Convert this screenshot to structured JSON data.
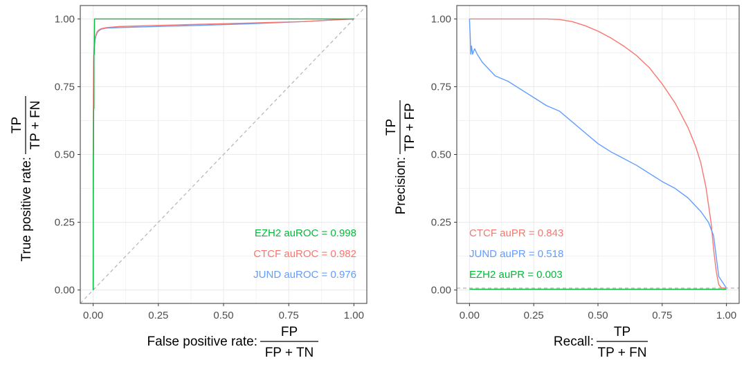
{
  "colors": {
    "CTCF": "#F8766D",
    "JUND": "#619CFF",
    "EZH2": "#00BA38",
    "grid": "#ebebeb",
    "diagonal": "#b3b3b3"
  },
  "chart_data": [
    {
      "type": "line",
      "panel": "left",
      "title": "",
      "xlabel": {
        "prefix": "False positive rate:",
        "numerator": "FP",
        "denominator": "FP + TN"
      },
      "ylabel": {
        "prefix": "True positive rate:",
        "numerator": "TP",
        "denominator": "TP + FN"
      },
      "xlim": [
        0,
        1
      ],
      "ylim": [
        0,
        1
      ],
      "x_ticks": [
        "0.00",
        "0.25",
        "0.50",
        "0.75",
        "1.00"
      ],
      "y_ticks": [
        "0.00",
        "0.25",
        "0.50",
        "0.75",
        "1.00"
      ],
      "grid": true,
      "reference_line": "diagonal",
      "legend_position": "bottom-right",
      "labels": [
        {
          "series": "EZH2",
          "text": "EZH2 auROC = 0.998"
        },
        {
          "series": "CTCF",
          "text": "CTCF auROC = 0.982"
        },
        {
          "series": "JUND",
          "text": "JUND auROC = 0.976"
        }
      ],
      "series": [
        {
          "name": "JUND",
          "x": [
            0,
            0.001,
            0.002,
            0.003,
            0.005,
            0.007,
            0.01,
            0.015,
            0.02,
            0.03,
            0.05,
            0.1,
            0.2,
            0.4,
            0.6,
            0.8,
            0.9,
            1.0
          ],
          "y": [
            0,
            0.6,
            0.8,
            0.87,
            0.9,
            0.92,
            0.935,
            0.948,
            0.955,
            0.962,
            0.966,
            0.968,
            0.971,
            0.976,
            0.982,
            0.99,
            0.995,
            1.0
          ]
        },
        {
          "name": "CTCF",
          "x": [
            0,
            0.001,
            0.002,
            0.004,
            0.006,
            0.01,
            0.015,
            0.02,
            0.03,
            0.05,
            0.1,
            0.2,
            0.4,
            0.6,
            0.8,
            0.9,
            1.0
          ],
          "y": [
            0,
            0.7,
            0.85,
            0.9,
            0.925,
            0.94,
            0.952,
            0.958,
            0.964,
            0.968,
            0.972,
            0.975,
            0.98,
            0.985,
            0.99,
            0.995,
            1.0
          ]
        },
        {
          "name": "EZH2",
          "x": [
            0,
            0.0005,
            0.001,
            0.002,
            0.003,
            0.003,
            0.004,
            0.005,
            1.0
          ],
          "y": [
            0,
            0.5,
            0.5,
            0.67,
            0.67,
            0.87,
            0.87,
            1.0,
            1.0
          ]
        }
      ]
    },
    {
      "type": "line",
      "panel": "right",
      "title": "",
      "xlabel": {
        "prefix": "Recall:",
        "numerator": "TP",
        "denominator": "TP + FN"
      },
      "ylabel": {
        "prefix": "Precision:",
        "numerator": "TP",
        "denominator": "TP + FP"
      },
      "xlim": [
        0,
        1
      ],
      "ylim": [
        0,
        1
      ],
      "x_ticks": [
        "0.00",
        "0.25",
        "0.50",
        "0.75",
        "1.00"
      ],
      "y_ticks": [
        "0.00",
        "0.25",
        "0.50",
        "0.75",
        "1.00"
      ],
      "grid": true,
      "reference_line": "horizontal",
      "reference_y": 0.007,
      "legend_position": "bottom-left",
      "labels": [
        {
          "series": "CTCF",
          "text": "CTCF auPR = 0.843"
        },
        {
          "series": "JUND",
          "text": "JUND auPR = 0.518"
        },
        {
          "series": "EZH2",
          "text": "EZH2 auPR = 0.003"
        }
      ],
      "series": [
        {
          "name": "CTCF",
          "x": [
            0,
            0.1,
            0.2,
            0.3,
            0.35,
            0.4,
            0.45,
            0.5,
            0.55,
            0.6,
            0.65,
            0.7,
            0.75,
            0.8,
            0.85,
            0.88,
            0.9,
            0.92,
            0.94,
            0.95,
            0.96,
            0.97,
            0.98,
            1.0
          ],
          "y": [
            1.0,
            1.0,
            1.0,
            1.0,
            0.998,
            0.99,
            0.975,
            0.955,
            0.93,
            0.9,
            0.865,
            0.82,
            0.76,
            0.69,
            0.6,
            0.53,
            0.47,
            0.38,
            0.25,
            0.15,
            0.07,
            0.02,
            0.008,
            0.007
          ]
        },
        {
          "name": "JUND",
          "x": [
            0,
            0.003,
            0.005,
            0.008,
            0.012,
            0.02,
            0.03,
            0.05,
            0.08,
            0.1,
            0.15,
            0.2,
            0.25,
            0.3,
            0.35,
            0.4,
            0.45,
            0.5,
            0.55,
            0.6,
            0.65,
            0.7,
            0.75,
            0.8,
            0.85,
            0.9,
            0.93,
            0.95,
            0.97,
            1.0
          ],
          "y": [
            1.0,
            0.93,
            0.87,
            0.9,
            0.87,
            0.89,
            0.87,
            0.84,
            0.81,
            0.79,
            0.77,
            0.74,
            0.71,
            0.68,
            0.66,
            0.62,
            0.58,
            0.54,
            0.51,
            0.485,
            0.46,
            0.43,
            0.4,
            0.375,
            0.34,
            0.29,
            0.25,
            0.2,
            0.05,
            0.007
          ]
        },
        {
          "name": "EZH2",
          "x": [
            0,
            0.25,
            0.5,
            0.75,
            1.0
          ],
          "y": [
            0.003,
            0.003,
            0.003,
            0.003,
            0.003
          ]
        }
      ]
    }
  ]
}
